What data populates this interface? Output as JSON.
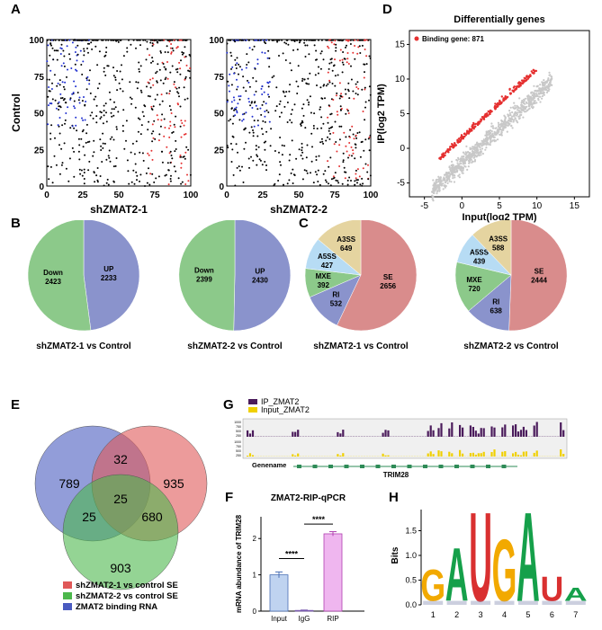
{
  "panel_labels": {
    "a": "A",
    "b": "B",
    "c": "C",
    "d": "D",
    "e": "E",
    "f": "F",
    "g": "G",
    "h": "H"
  },
  "colors": {
    "up": "#8A93CC",
    "down": "#8CC98A",
    "se": "#D98C8C",
    "ri": "#8A93CC",
    "mxe": "#8CC98A",
    "a5ss": "#B7DCF4",
    "a3ss": "#E5D4A0",
    "ip": "#4B1C5C",
    "input": "#F0D000",
    "red": "#E53030",
    "grey": "#C8C8C8",
    "venn_blue": "#4A5BC0",
    "venn_red": "#E05858",
    "venn_green": "#4CB84C",
    "bar_input": "#BFD3F0",
    "bar_igg": "#C9B7E4",
    "bar_rip": "#EFB6EF"
  },
  "chart_data": [
    {
      "id": "A1",
      "type": "scatter",
      "xlabel": "shZMAT2-1",
      "ylabel": "Control",
      "xlim": [
        0,
        100
      ],
      "ylim": [
        0,
        100
      ],
      "xticks": [
        "0",
        "25",
        "50",
        "75",
        "100"
      ],
      "yticks": [
        "0",
        "25",
        "50",
        "75",
        "100"
      ]
    },
    {
      "id": "A2",
      "type": "scatter",
      "xlabel": "shZMAT2-2",
      "ylabel": "",
      "xlim": [
        0,
        100
      ],
      "ylim": [
        0,
        100
      ],
      "xticks": [
        "0",
        "25",
        "50",
        "75",
        "100"
      ],
      "yticks": [
        "0",
        "25",
        "50",
        "75",
        "100"
      ]
    },
    {
      "id": "B1",
      "type": "pie",
      "title": "shZMAT2-1 vs Control",
      "slices": [
        {
          "label": "UP",
          "value": 2233
        },
        {
          "label": "Down",
          "value": 2423
        }
      ]
    },
    {
      "id": "B2",
      "type": "pie",
      "title": "shZMAT2-2 vs Control",
      "slices": [
        {
          "label": "UP",
          "value": 2430
        },
        {
          "label": "Down",
          "value": 2399
        }
      ]
    },
    {
      "id": "C1",
      "type": "pie",
      "title": "shZMAT2-1 vs Control",
      "slices": [
        {
          "label": "SE",
          "value": 2656
        },
        {
          "label": "RI",
          "value": 532
        },
        {
          "label": "MXE",
          "value": 392
        },
        {
          "label": "A5SS",
          "value": 427
        },
        {
          "label": "A3SS",
          "value": 649
        }
      ]
    },
    {
      "id": "C2",
      "type": "pie",
      "title": "shZMAT2-2 vs Control",
      "slices": [
        {
          "label": "SE",
          "value": 2444
        },
        {
          "label": "RI",
          "value": 638
        },
        {
          "label": "MXE",
          "value": 720
        },
        {
          "label": "A5SS",
          "value": 439
        },
        {
          "label": "A3SS",
          "value": 588
        }
      ]
    },
    {
      "id": "D",
      "type": "scatter",
      "title": "Differentially genes",
      "xlabel": "Input(log2 TPM)",
      "ylabel": "IP(log2 TPM)",
      "xlim": [
        -7,
        17
      ],
      "ylim": [
        -7,
        17
      ],
      "xticks": [
        "-5",
        "0",
        "5",
        "10",
        "15"
      ],
      "yticks": [
        "-5",
        "0",
        "5",
        "10",
        "15"
      ],
      "legend": "Binding gene: 871"
    },
    {
      "id": "E",
      "type": "venn",
      "regions": {
        "only_binding": "789",
        "only_se1": "935",
        "only_se2": "903",
        "binding_se1": "32",
        "binding_se2": "25",
        "se1_se2": "680",
        "all": "25"
      },
      "legend": [
        "shZMAT2-1 vs control SE",
        "shZMAT2-2 vs control SE",
        "ZMAT2 binding RNA"
      ]
    },
    {
      "id": "F",
      "type": "bar",
      "title": "ZMAT2-RIP-qPCR",
      "ylabel": "mRNA abundance of TRIM28",
      "categories": [
        "Input",
        "IgG",
        "RIP"
      ],
      "values": [
        1.0,
        0.02,
        2.13
      ],
      "errors": [
        0.08,
        0.01,
        0.06
      ],
      "ylim": [
        0,
        2.6
      ],
      "yticks": [
        "0",
        "1",
        "2"
      ],
      "significance": [
        "****",
        "****"
      ]
    },
    {
      "id": "G",
      "type": "track",
      "legend": [
        "IP_ZMAT2",
        "Input_ZMAT2"
      ],
      "genename_label": "Genename",
      "gene": "TRIM28",
      "ip_scale": [
        "1000",
        "750",
        "500",
        "250"
      ],
      "input_scale": [
        "1000",
        "750",
        "500",
        "250"
      ]
    },
    {
      "id": "H",
      "type": "sequence_logo",
      "ylabel": "Bits",
      "ylim": [
        0,
        2
      ],
      "yticks": [
        "0.0",
        "0.5",
        "1.0",
        "1.5"
      ],
      "positions": [
        "1",
        "2",
        "3",
        "4",
        "5",
        "6",
        "7"
      ],
      "letters": [
        "G",
        "A",
        "U",
        "G",
        "A",
        "U",
        "A"
      ],
      "heights": [
        0.78,
        1.25,
        2.05,
        1.45,
        2.05,
        0.62,
        0.38
      ]
    }
  ]
}
